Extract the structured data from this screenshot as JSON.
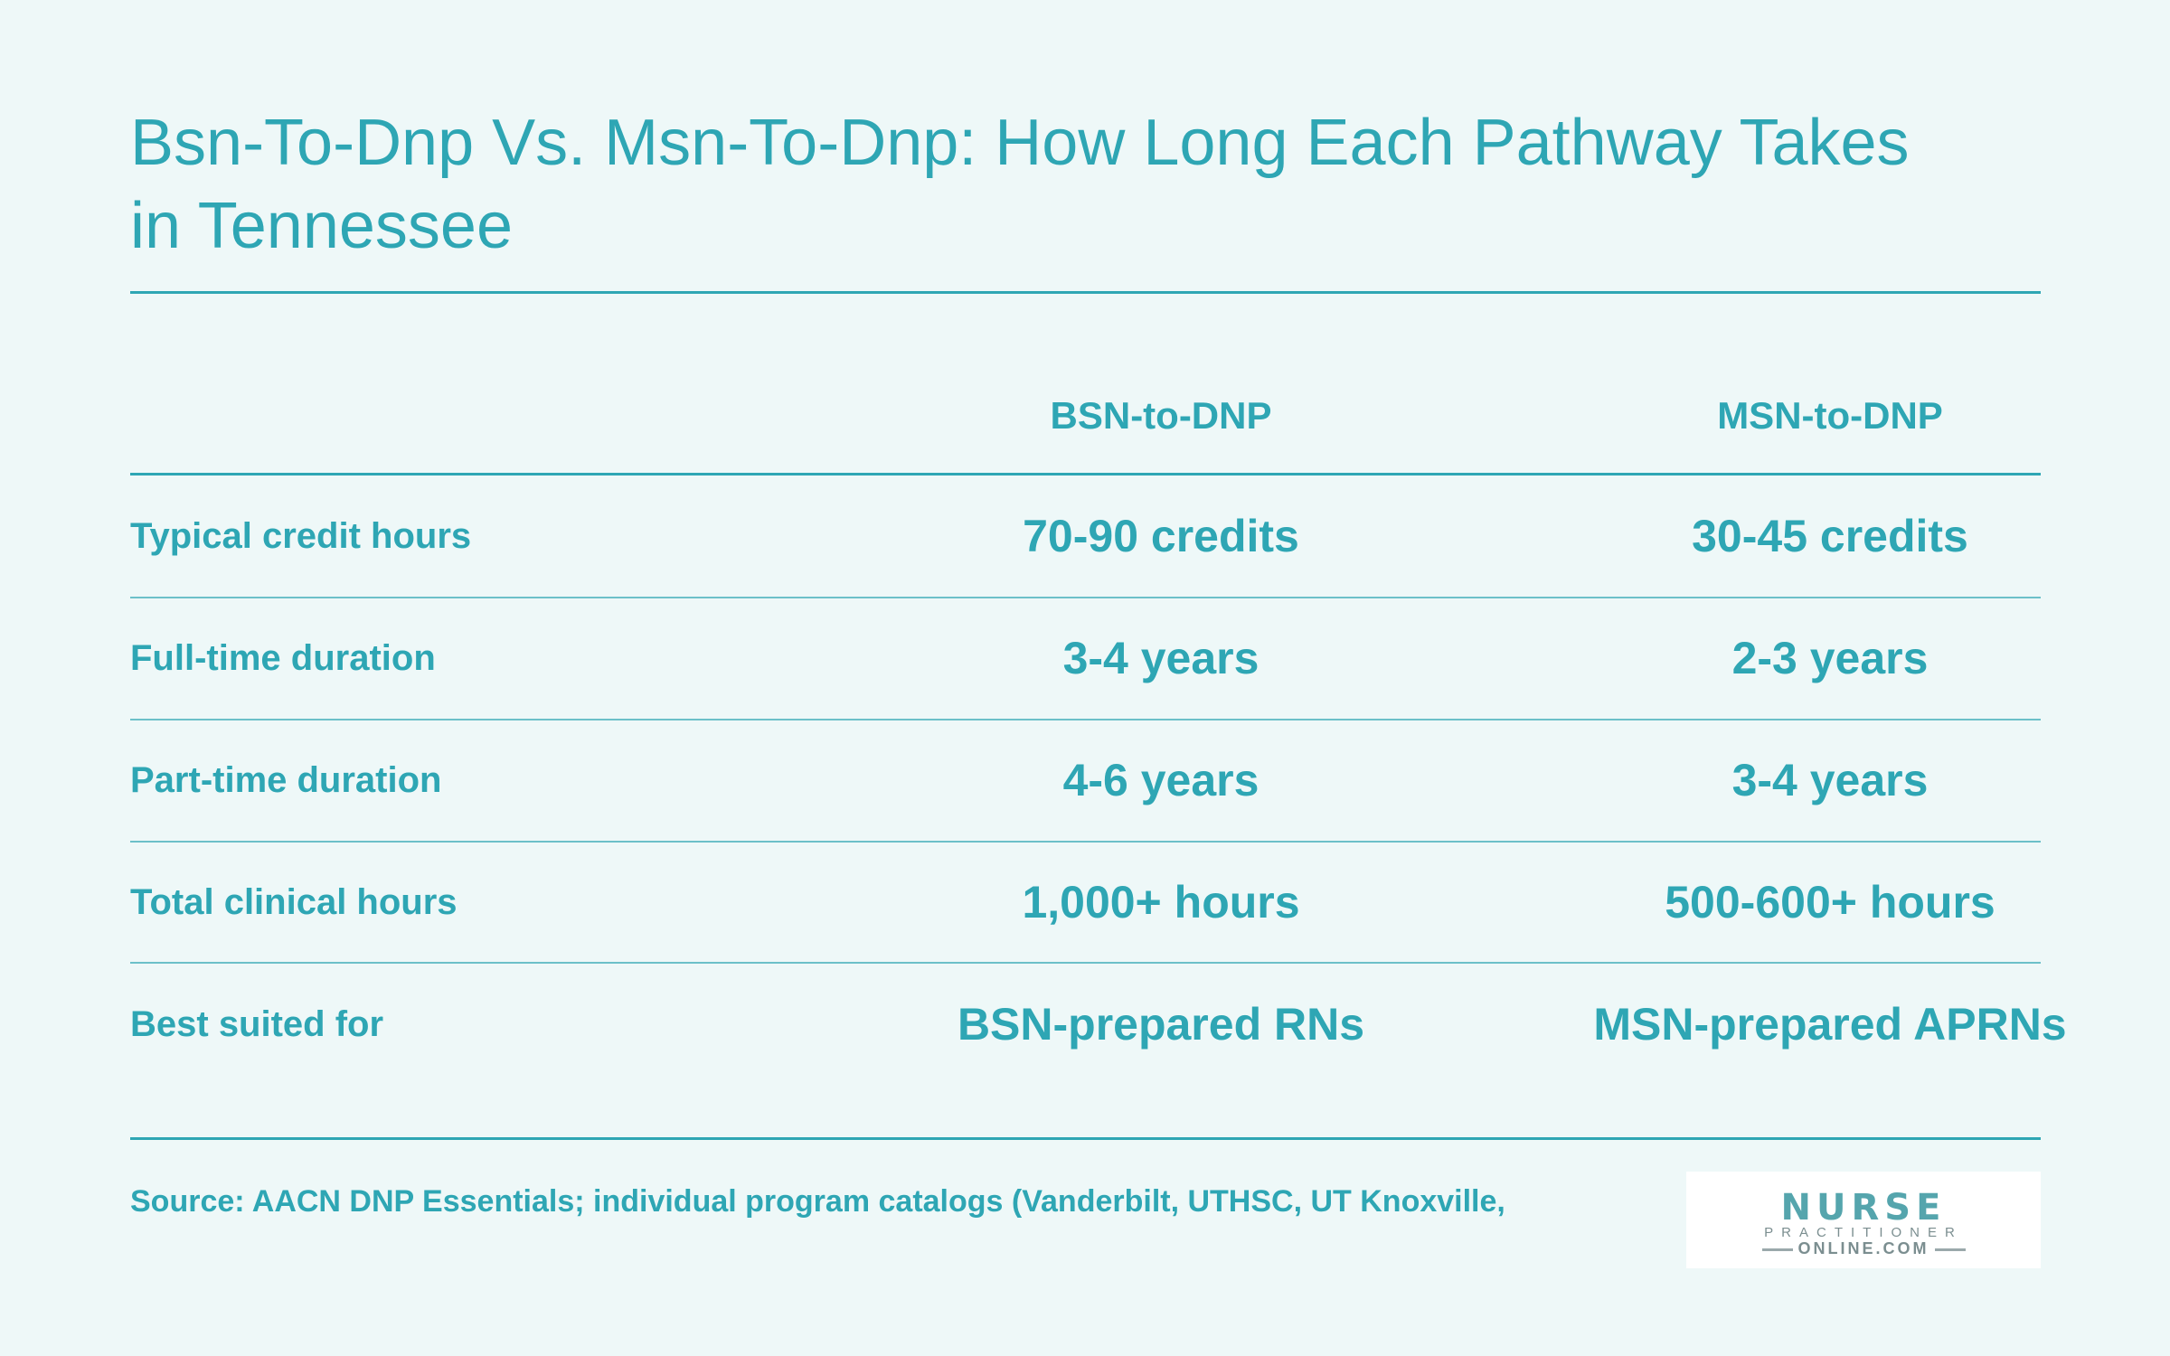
{
  "title": "Bsn-To-Dnp Vs. Msn-To-Dnp: How Long Each Pathway Takes in Tennessee",
  "table": {
    "columns": [
      "BSN-to-DNP",
      "MSN-to-DNP"
    ],
    "rows": [
      {
        "label": "Typical credit hours",
        "bsn": "70-90 credits",
        "msn": "30-45 credits"
      },
      {
        "label": "Full-time duration",
        "bsn": "3-4 years",
        "msn": "2-3 years"
      },
      {
        "label": "Part-time duration",
        "bsn": "4-6 years",
        "msn": "3-4 years"
      },
      {
        "label": "Total clinical hours",
        "bsn": "1,000+ hours",
        "msn": "500-600+ hours"
      },
      {
        "label": "Best suited for",
        "bsn": "BSN-prepared RNs",
        "msn": "MSN-prepared APRNs"
      }
    ]
  },
  "source": "Source: AACN DNP Essentials; individual program catalogs (Vanderbilt, UTHSC, UT Knoxville,",
  "logo": {
    "word": "NURSE",
    "sub": "PRACTITIONER",
    "domain": "ONLINE.COM"
  },
  "colors": {
    "background": "#eef8f8",
    "accent": "#2ea6b4"
  }
}
